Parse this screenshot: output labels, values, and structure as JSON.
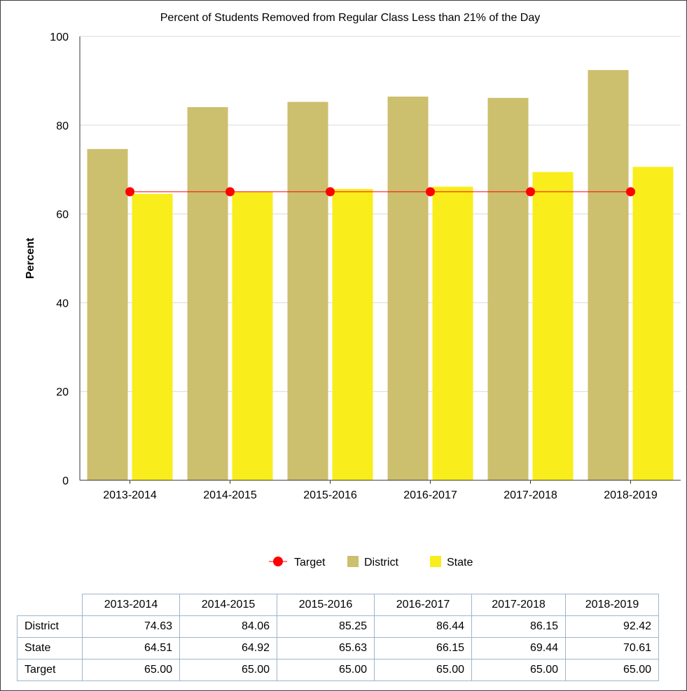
{
  "chart_data": {
    "type": "bar",
    "title": "Percent of Students Removed from Regular Class Less than 21% of the Day",
    "ylabel": "Percent",
    "xlabel": "",
    "ylim": [
      0,
      100
    ],
    "yticks": [
      0,
      20,
      40,
      60,
      80,
      100
    ],
    "grid": true,
    "legend_position": "bottom",
    "categories": [
      "2013-2014",
      "2014-2015",
      "2015-2016",
      "2016-2017",
      "2017-2018",
      "2018-2019"
    ],
    "series": [
      {
        "name": "District",
        "kind": "bar",
        "color": "#ccbf6e",
        "values": [
          74.63,
          84.06,
          85.25,
          86.44,
          86.15,
          92.42
        ]
      },
      {
        "name": "State",
        "kind": "bar",
        "color": "#f9ed1c",
        "values": [
          64.51,
          64.92,
          65.63,
          66.15,
          69.44,
          70.61
        ]
      },
      {
        "name": "Target",
        "kind": "line",
        "color": "#ff0000",
        "values": [
          65.0,
          65.0,
          65.0,
          65.0,
          65.0,
          65.0
        ]
      }
    ],
    "legend_order": [
      "Target",
      "District",
      "State"
    ]
  },
  "table": {
    "headers": [
      "2013-2014",
      "2014-2015",
      "2015-2016",
      "2016-2017",
      "2017-2018",
      "2018-2019"
    ],
    "rows": [
      {
        "label": "District",
        "values": [
          "74.63",
          "84.06",
          "85.25",
          "86.44",
          "86.15",
          "92.42"
        ]
      },
      {
        "label": "State",
        "values": [
          "64.51",
          "64.92",
          "65.63",
          "66.15",
          "69.44",
          "70.61"
        ]
      },
      {
        "label": "Target",
        "values": [
          "65.00",
          "65.00",
          "65.00",
          "65.00",
          "65.00",
          "65.00"
        ]
      }
    ]
  }
}
